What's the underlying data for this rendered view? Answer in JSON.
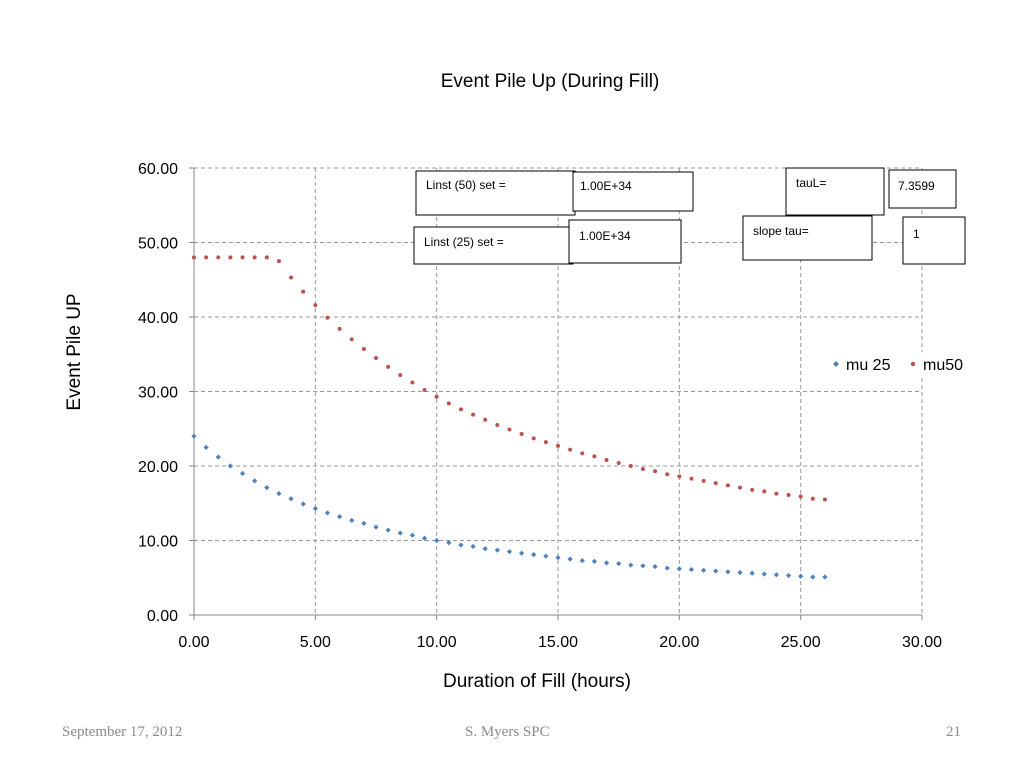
{
  "chart_data": {
    "type": "scatter",
    "title": "Event Pile Up (During Fill)",
    "xlabel": "Duration of Fill (hours)",
    "ylabel": "Event Pile UP",
    "xlim": [
      0,
      30
    ],
    "ylim": [
      0,
      60
    ],
    "x_ticks": [
      "0.00",
      "5.00",
      "10.00",
      "15.00",
      "20.00",
      "25.00",
      "30.00"
    ],
    "y_ticks": [
      "0.00",
      "10.00",
      "20.00",
      "30.00",
      "40.00",
      "50.00",
      "60.00"
    ],
    "grid": true,
    "legend_position": "right",
    "series": [
      {
        "name": "mu 25",
        "color": "#4f81bd",
        "marker": "diamond",
        "x": [
          0,
          0.5,
          1,
          1.5,
          2,
          2.5,
          3,
          3.5,
          4,
          4.5,
          5,
          5.5,
          6,
          6.5,
          7,
          7.5,
          8,
          8.5,
          9,
          9.5,
          10,
          10.5,
          11,
          11.5,
          12,
          12.5,
          13,
          13.5,
          14,
          14.5,
          15,
          15.5,
          16,
          16.5,
          17,
          17.5,
          18,
          18.5,
          19,
          19.5,
          20,
          20.5,
          21,
          21.5,
          22,
          22.5,
          23,
          23.5,
          24,
          24.5,
          25,
          25.5,
          26
        ],
        "y": [
          24.0,
          22.5,
          21.2,
          20.0,
          19.0,
          18.0,
          17.1,
          16.3,
          15.6,
          14.9,
          14.3,
          13.7,
          13.2,
          12.7,
          12.3,
          11.8,
          11.4,
          11.0,
          10.7,
          10.3,
          10.0,
          9.7,
          9.4,
          9.2,
          8.9,
          8.7,
          8.5,
          8.3,
          8.1,
          7.9,
          7.7,
          7.5,
          7.3,
          7.2,
          7.0,
          6.9,
          6.7,
          6.6,
          6.5,
          6.3,
          6.2,
          6.1,
          6.0,
          5.9,
          5.8,
          5.7,
          5.6,
          5.5,
          5.4,
          5.3,
          5.2,
          5.1,
          5.1
        ]
      },
      {
        "name": "mu50",
        "color": "#c0504d",
        "marker": "circle",
        "x": [
          0,
          0.5,
          1,
          1.5,
          2,
          2.5,
          3,
          3.5,
          4,
          4.5,
          5,
          5.5,
          6,
          6.5,
          7,
          7.5,
          8,
          8.5,
          9,
          9.5,
          10,
          10.5,
          11,
          11.5,
          12,
          12.5,
          13,
          13.5,
          14,
          14.5,
          15,
          15.5,
          16,
          16.5,
          17,
          17.5,
          18,
          18.5,
          19,
          19.5,
          20,
          20.5,
          21,
          21.5,
          22,
          22.5,
          23,
          23.5,
          24,
          24.5,
          25,
          25.5,
          26
        ],
        "y": [
          48.0,
          48.0,
          48.0,
          48.0,
          48.0,
          48.0,
          48.0,
          47.5,
          45.3,
          43.4,
          41.6,
          39.9,
          38.4,
          37.0,
          35.7,
          34.5,
          33.3,
          32.2,
          31.2,
          30.2,
          29.3,
          28.4,
          27.6,
          26.9,
          26.2,
          25.5,
          24.9,
          24.3,
          23.7,
          23.2,
          22.7,
          22.2,
          21.7,
          21.3,
          20.8,
          20.4,
          20.0,
          19.6,
          19.3,
          18.9,
          18.6,
          18.3,
          18.0,
          17.7,
          17.4,
          17.1,
          16.8,
          16.6,
          16.3,
          16.1,
          15.9,
          15.6,
          15.5
        ]
      }
    ]
  },
  "annotations": {
    "linst50_label": "Linst (50) set =",
    "linst50_value": "1.00E+34",
    "linst25_label": "Linst (25) set =",
    "linst25_value": "1.00E+34",
    "taul_label": "tauL=",
    "taul_value": "7.3599",
    "slope_label": "slope tau=",
    "slope_value": "1"
  },
  "footer": {
    "date": "September 17, 2012",
    "author": "S. Myers SPC",
    "page": "21"
  }
}
